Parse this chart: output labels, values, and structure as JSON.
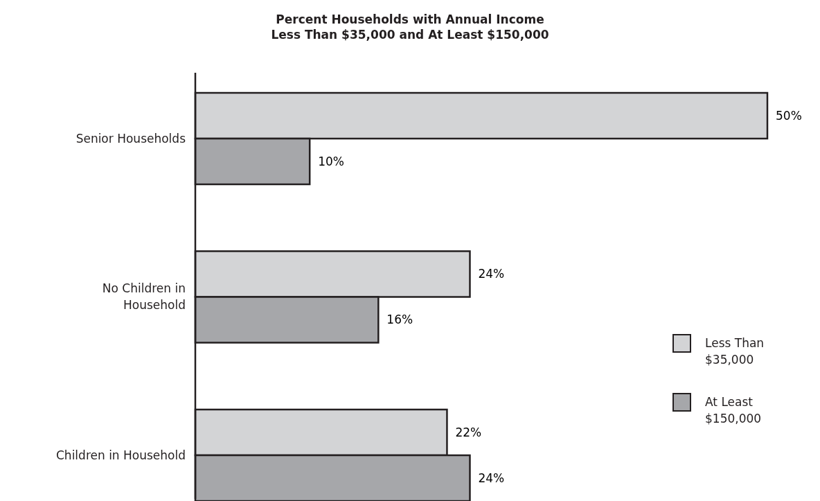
{
  "chart_data": {
    "type": "bar",
    "orientation": "horizontal",
    "title": "Percent Households with Annual Income Less Than $35,000 and At Least $150,000",
    "categories": [
      "Senior Households",
      "No Children in Household",
      "Children in Household"
    ],
    "series": [
      {
        "name": "Less Than $35,000",
        "color": "#d3d4d6",
        "values": [
          50,
          24,
          22
        ],
        "value_labels": [
          "50%",
          "24%",
          "22%"
        ]
      },
      {
        "name": "At Least $150,000",
        "color": "#a6a7aa",
        "values": [
          10,
          16,
          24
        ],
        "value_labels": [
          "10%",
          "16%",
          "24%"
        ]
      }
    ],
    "legend": "right"
  }
}
